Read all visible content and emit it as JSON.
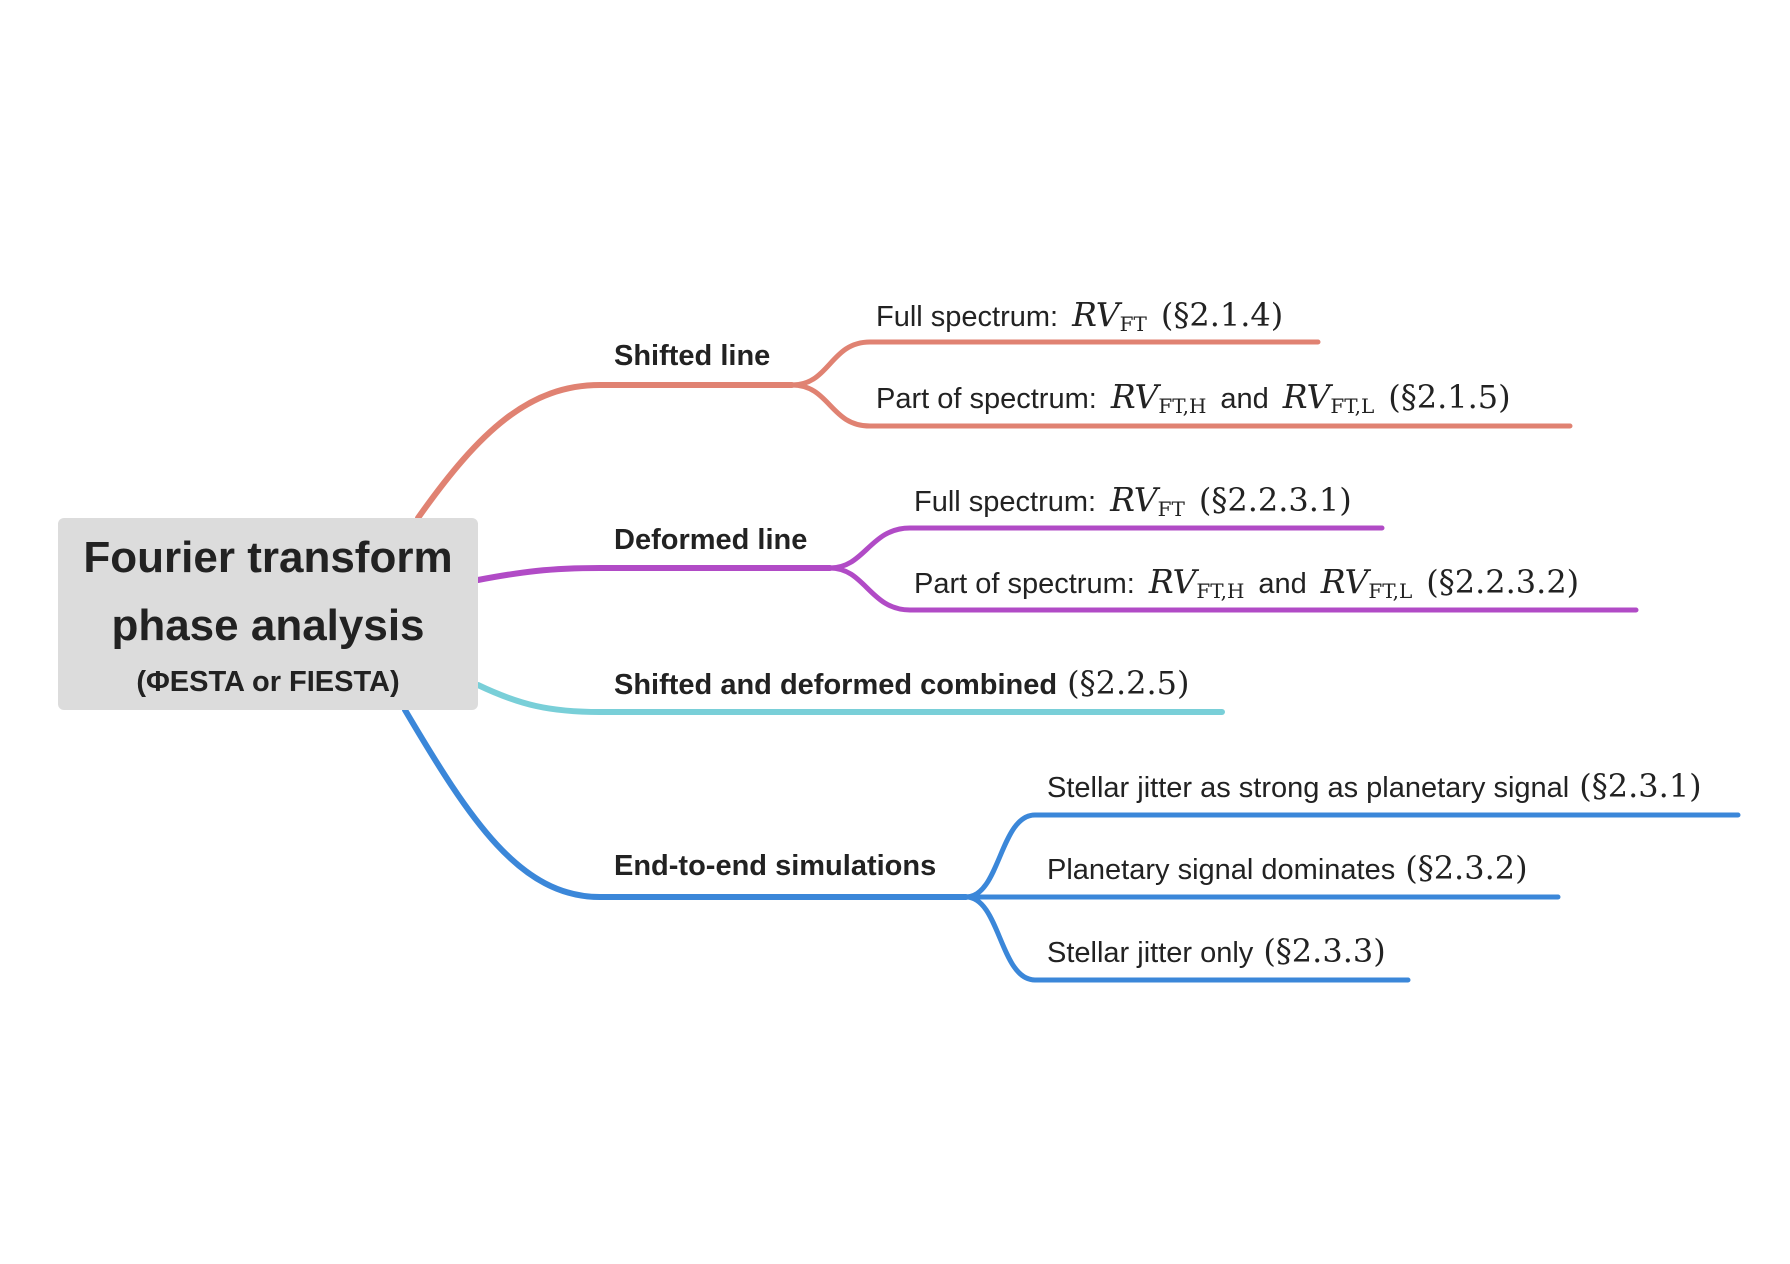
{
  "root": {
    "title_line1": "Fourier transform",
    "title_line2": "phase analysis",
    "subtitle": "(ΦESTA or FIESTA)"
  },
  "colors": {
    "shifted": "#e08272",
    "deformed": "#b14bc6",
    "combined": "#79cfd8",
    "e2e": "#3b87d9"
  },
  "branches": {
    "shifted": {
      "label": "Shifted line",
      "full": {
        "text": "Full spectrum:",
        "rv": "RV",
        "sub": "FT",
        "ref": "(§2.1.4)"
      },
      "part": {
        "text": "Part of spectrum:",
        "rv1": "RV",
        "sub1": "FT,H",
        "and": "and",
        "rv2": "RV",
        "sub2": "FT,L",
        "ref": "(§2.1.5)"
      }
    },
    "deformed": {
      "label": "Deformed line",
      "full": {
        "text": "Full spectrum:",
        "rv": "RV",
        "sub": "FT",
        "ref": "(§2.2.3.1)"
      },
      "part": {
        "text": "Part of spectrum:",
        "rv1": "RV",
        "sub1": "FT,H",
        "and": "and",
        "rv2": "RV",
        "sub2": "FT,L",
        "ref": "(§2.2.3.2)"
      }
    },
    "combined": {
      "label": "Shifted and deformed combined",
      "ref": "(§2.2.5)"
    },
    "e2e": {
      "label": "End-to-end simulations",
      "leaves": [
        {
          "text": "Stellar jitter as strong as planetary signal",
          "ref": "(§2.3.1)"
        },
        {
          "text": "Planetary signal dominates",
          "ref": "(§2.3.2)"
        },
        {
          "text": "Stellar jitter only",
          "ref": "(§2.3.3)"
        }
      ]
    }
  }
}
